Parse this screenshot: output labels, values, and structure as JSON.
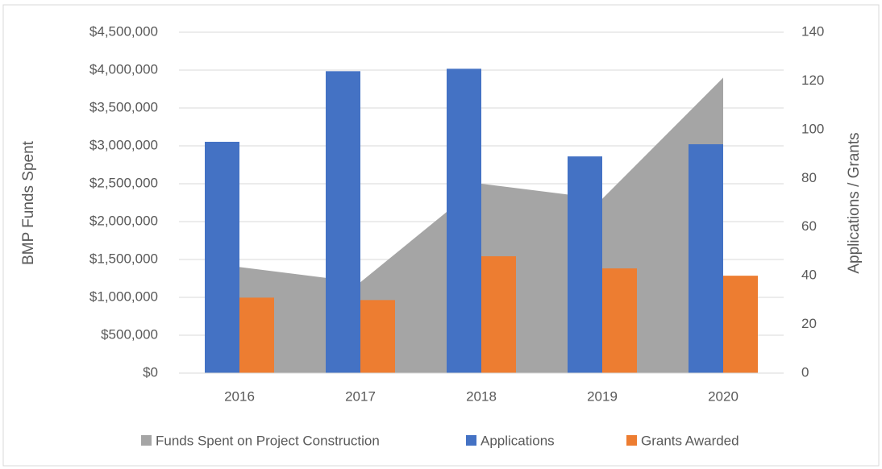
{
  "chart_data": {
    "type": "bar",
    "categories": [
      "2016",
      "2017",
      "2018",
      "2019",
      "2020"
    ],
    "series": [
      {
        "name": "Funds Spent on Project Construction",
        "type": "area",
        "axis": "y",
        "color": "#a5a5a5",
        "values": [
          1400000,
          1200000,
          2500000,
          2300000,
          3900000
        ]
      },
      {
        "name": "Applications",
        "type": "bar",
        "axis": "y2",
        "color": "#4472c4",
        "values": [
          95,
          124,
          125,
          89,
          94
        ]
      },
      {
        "name": "Grants Awarded",
        "type": "bar",
        "axis": "y2",
        "color": "#ed7d31",
        "values": [
          31,
          30,
          48,
          43,
          40
        ]
      }
    ],
    "ylabel": "BMP Funds Spent",
    "y2label": "Applications / Grants",
    "ylim": [
      0,
      4500000
    ],
    "yticks": [
      {
        "value": 0,
        "label": "$0"
      },
      {
        "value": 500000,
        "label": "$500,000"
      },
      {
        "value": 1000000,
        "label": "$1,000,000"
      },
      {
        "value": 1500000,
        "label": "$1,500,000"
      },
      {
        "value": 2000000,
        "label": "$2,000,000"
      },
      {
        "value": 2500000,
        "label": "$2,500,000"
      },
      {
        "value": 3000000,
        "label": "$3,000,000"
      },
      {
        "value": 3500000,
        "label": "$3,500,000"
      },
      {
        "value": 4000000,
        "label": "$4,000,000"
      },
      {
        "value": 4500000,
        "label": "$4,500,000"
      }
    ],
    "y2lim": [
      0,
      140
    ],
    "y2ticks": [
      0,
      20,
      40,
      60,
      80,
      100,
      120,
      140
    ],
    "grid": true,
    "legend": "bottom"
  }
}
